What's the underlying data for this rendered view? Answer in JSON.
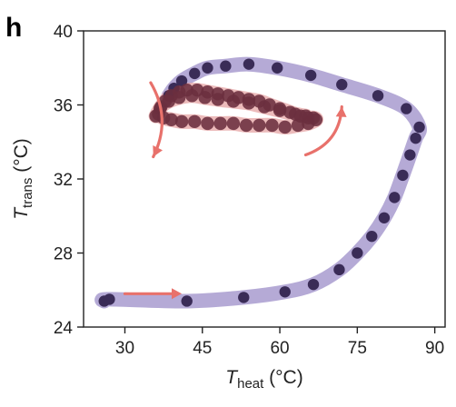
{
  "panel_label": "h",
  "colors": {
    "outer_band": "#a89bcf",
    "inner_band": "#e6a4a4",
    "outer_points": "#3a2c57",
    "inner_points": "#6b2f3f",
    "arrow": "#e8716b",
    "axis": "#222222"
  },
  "chart_data": {
    "type": "line",
    "title": "",
    "xlabel": "T",
    "xlabel_sub": "heat",
    "xlabel_unit": " (°C)",
    "ylabel": "T",
    "ylabel_sub": "trans",
    "ylabel_unit": " (°C)",
    "xlim": [
      22,
      92
    ],
    "ylim": [
      24,
      40
    ],
    "xticks": [
      30,
      45,
      60,
      75,
      90
    ],
    "yticks": [
      24,
      28,
      32,
      36,
      40
    ],
    "grid": false,
    "series": [
      {
        "key": "outer",
        "points": [
          [
            26,
            25.4
          ],
          [
            27,
            25.5
          ],
          [
            42,
            25.4
          ],
          [
            53,
            25.6
          ],
          [
            61,
            25.9
          ],
          [
            66.5,
            26.3
          ],
          [
            71.5,
            27.1
          ],
          [
            75,
            28.0
          ],
          [
            77.8,
            28.9
          ],
          [
            80.2,
            29.9
          ],
          [
            82.2,
            31.0
          ],
          [
            83.8,
            32.2
          ],
          [
            85.2,
            33.3
          ],
          [
            86.3,
            34.2
          ],
          [
            87,
            34.8
          ],
          [
            84.5,
            35.8
          ],
          [
            79,
            36.5
          ],
          [
            72,
            37.1
          ],
          [
            66,
            37.6
          ],
          [
            59.5,
            38.0
          ],
          [
            54,
            38.2
          ],
          [
            49.5,
            38.1
          ],
          [
            46,
            38.0
          ],
          [
            43.5,
            37.7
          ],
          [
            41,
            37.3
          ],
          [
            39.5,
            36.9
          ],
          [
            38.5,
            36.5
          ]
        ]
      },
      {
        "key": "inner",
        "points": [
          [
            36,
            35.4
          ],
          [
            36.8,
            35.8
          ],
          [
            37.8,
            36.2
          ],
          [
            39,
            36.5
          ],
          [
            40.5,
            36.7
          ],
          [
            42,
            36.8
          ],
          [
            44,
            36.8
          ],
          [
            46,
            36.7
          ],
          [
            48,
            36.6
          ],
          [
            50,
            36.5
          ],
          [
            52,
            36.4
          ],
          [
            54,
            36.3
          ],
          [
            56,
            36.2
          ],
          [
            58,
            36.0
          ],
          [
            60,
            35.8
          ],
          [
            62,
            35.6
          ],
          [
            64,
            35.4
          ],
          [
            65.5,
            35.3
          ],
          [
            66.5,
            35.3
          ],
          [
            67,
            35.2
          ],
          [
            65.5,
            35.0
          ],
          [
            63.5,
            34.9
          ],
          [
            61,
            34.8
          ],
          [
            58.5,
            34.9
          ],
          [
            56,
            34.9
          ],
          [
            53.5,
            34.9
          ],
          [
            51,
            35.0
          ],
          [
            48.5,
            35.0
          ],
          [
            46,
            35.0
          ],
          [
            43.5,
            35.1
          ],
          [
            41,
            35.1
          ],
          [
            39,
            35.2
          ],
          [
            37.5,
            35.3
          ],
          [
            36.5,
            35.5
          ],
          [
            37,
            35.9
          ],
          [
            38.5,
            36.2
          ],
          [
            40.5,
            36.4
          ],
          [
            43,
            36.5
          ],
          [
            45.5,
            36.4
          ],
          [
            48,
            36.3
          ],
          [
            51,
            36.2
          ],
          [
            54,
            36.1
          ],
          [
            57,
            35.9
          ],
          [
            60,
            35.7
          ],
          [
            63,
            35.5
          ],
          [
            65,
            35.4
          ]
        ]
      }
    ],
    "arrows": [
      {
        "from": [
          30,
          25.8
        ],
        "to": [
          41,
          25.8
        ],
        "curve": 0
      },
      {
        "from": [
          35,
          37.2
        ],
        "to": [
          35.5,
          33.2
        ],
        "curve": -1
      },
      {
        "from": [
          65,
          33.3
        ],
        "to": [
          72,
          35.9
        ],
        "curve": 1
      }
    ]
  }
}
